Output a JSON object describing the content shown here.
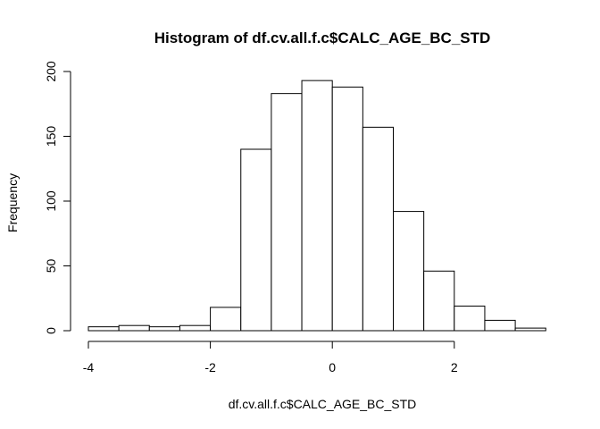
{
  "chart_data": {
    "type": "bar",
    "title": "Histogram of df.cv.all.f.c$CALC_AGE_BC_STD",
    "xlabel": "df.cv.all.f.c$CALC_AGE_BC_STD",
    "ylabel": "Frequency",
    "xlim": [
      -4,
      3.5
    ],
    "ylim": [
      0,
      200
    ],
    "x_ticks": [
      -4,
      -2,
      0,
      2
    ],
    "x_tick_labels": [
      "-4",
      "-2",
      "0",
      "2"
    ],
    "y_ticks": [
      0,
      50,
      100,
      150,
      200
    ],
    "y_tick_labels": [
      "0",
      "50",
      "100",
      "150",
      "200"
    ],
    "bins": [
      {
        "start": -4.0,
        "end": -3.5,
        "count": 3
      },
      {
        "start": -3.5,
        "end": -3.0,
        "count": 4
      },
      {
        "start": -3.0,
        "end": -2.5,
        "count": 3
      },
      {
        "start": -2.5,
        "end": -2.0,
        "count": 4
      },
      {
        "start": -2.0,
        "end": -1.5,
        "count": 18
      },
      {
        "start": -1.5,
        "end": -1.0,
        "count": 140
      },
      {
        "start": -1.0,
        "end": -0.5,
        "count": 183
      },
      {
        "start": -0.5,
        "end": 0.0,
        "count": 193
      },
      {
        "start": 0.0,
        "end": 0.5,
        "count": 188
      },
      {
        "start": 0.5,
        "end": 1.0,
        "count": 157
      },
      {
        "start": 1.0,
        "end": 1.5,
        "count": 92
      },
      {
        "start": 1.5,
        "end": 2.0,
        "count": 46
      },
      {
        "start": 2.0,
        "end": 2.5,
        "count": 19
      },
      {
        "start": 2.5,
        "end": 3.0,
        "count": 8
      },
      {
        "start": 3.0,
        "end": 3.5,
        "count": 2
      }
    ],
    "bar_fill": "#ffffff",
    "bar_stroke": "#000000",
    "grid": false,
    "legend": "none"
  }
}
